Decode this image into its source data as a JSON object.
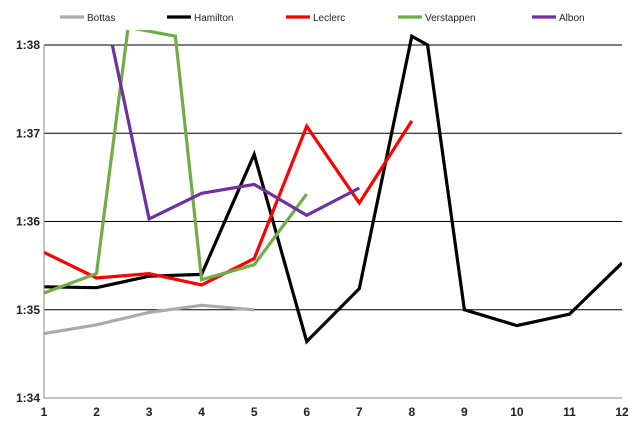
{
  "chart_data": {
    "type": "line",
    "title": "",
    "xlabel": "",
    "ylabel": "",
    "x": [
      1,
      2,
      3,
      4,
      5,
      6,
      7,
      8,
      9,
      10,
      11,
      12
    ],
    "xlim": [
      1,
      12
    ],
    "ylim": [
      94,
      98
    ],
    "y_ticks": [
      94,
      95,
      96,
      97,
      98
    ],
    "y_tick_labels": [
      "1:34",
      "1:35",
      "1:36",
      "1:37",
      "1:38"
    ],
    "x_tick_labels": [
      "1",
      "2",
      "3",
      "4",
      "5",
      "6",
      "7",
      "8",
      "9",
      "10",
      "11",
      "12"
    ],
    "grid": "horizontal",
    "legend_position": "top",
    "series": [
      {
        "name": "Bottas",
        "color": "#aaaaaa",
        "points": [
          [
            1,
            94.73
          ],
          [
            2,
            94.83
          ],
          [
            3,
            94.97
          ],
          [
            4,
            95.05
          ],
          [
            5,
            95.0
          ]
        ]
      },
      {
        "name": "Hamilton",
        "color": "#000000",
        "points": [
          [
            1,
            95.26
          ],
          [
            2,
            95.25
          ],
          [
            3,
            95.38
          ],
          [
            4,
            95.4
          ],
          [
            5,
            96.76
          ],
          [
            6,
            94.64
          ],
          [
            7,
            95.24
          ],
          [
            8,
            98.1
          ],
          [
            8.3,
            98.0
          ],
          [
            9,
            95.0
          ],
          [
            10,
            94.82
          ],
          [
            11,
            94.95
          ],
          [
            12,
            95.53
          ]
        ]
      },
      {
        "name": "Leclerc",
        "color": "#ff0000",
        "points": [
          [
            1,
            95.65
          ],
          [
            2,
            95.36
          ],
          [
            3,
            95.41
          ],
          [
            4,
            95.28
          ],
          [
            5,
            95.58
          ],
          [
            6,
            97.08
          ],
          [
            7,
            96.21
          ],
          [
            8,
            97.14
          ]
        ]
      },
      {
        "name": "Verstappen",
        "color": "#70ad47",
        "points": [
          [
            1,
            95.19
          ],
          [
            2,
            95.41
          ],
          [
            2.6,
            98.2
          ],
          [
            3.5,
            98.1
          ],
          [
            4,
            95.34
          ],
          [
            5,
            95.51
          ],
          [
            6,
            96.31
          ]
        ]
      },
      {
        "name": "Albon",
        "color": "#7030a0",
        "points": [
          [
            2.3,
            98.0
          ],
          [
            3,
            96.03
          ],
          [
            4,
            96.32
          ],
          [
            5,
            96.42
          ],
          [
            6,
            96.07
          ],
          [
            7,
            96.38
          ]
        ]
      }
    ]
  }
}
